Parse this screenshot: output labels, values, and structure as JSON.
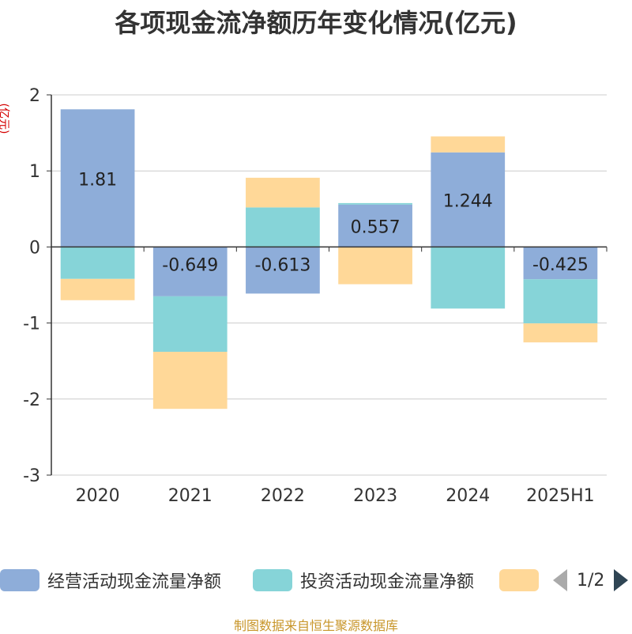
{
  "title": "各项现金流净额历年变化情况(亿元)",
  "y_unit": "(亿元)",
  "legend": {
    "items": [
      {
        "label": "经营活动现金流量净额",
        "color": "#8eadd9"
      },
      {
        "label": "投资活动现金流量净额",
        "color": "#86d4d8"
      },
      {
        "label": "",
        "color": "#ffd898"
      }
    ],
    "page": "1/2"
  },
  "source": "制图数据来自恒生聚源数据库",
  "chart_data": {
    "type": "bar",
    "stacked": true,
    "title": "各项现金流净额历年变化情况(亿元)",
    "ylabel": "(亿元)",
    "ylim": [
      -3,
      2
    ],
    "yticks": [
      2,
      1,
      0,
      -1,
      -2,
      -3
    ],
    "categories": [
      "2020",
      "2021",
      "2022",
      "2023",
      "2024",
      "2025H1"
    ],
    "series": [
      {
        "name": "经营活动现金流量净额",
        "color": "#8eadd9",
        "values": [
          1.81,
          -0.649,
          -0.613,
          0.557,
          1.244,
          -0.425
        ],
        "labels": [
          "1.81",
          "-0.649",
          "-0.613",
          "0.557",
          "1.244",
          "-0.425"
        ]
      },
      {
        "name": "投资活动现金流量净额",
        "color": "#86d4d8",
        "values": [
          -0.42,
          -0.73,
          0.52,
          0.02,
          -0.81,
          -0.58
        ]
      },
      {
        "name": "",
        "color": "#ffd898",
        "values": [
          -0.28,
          -0.75,
          0.39,
          -0.49,
          0.21,
          -0.25
        ]
      }
    ]
  }
}
